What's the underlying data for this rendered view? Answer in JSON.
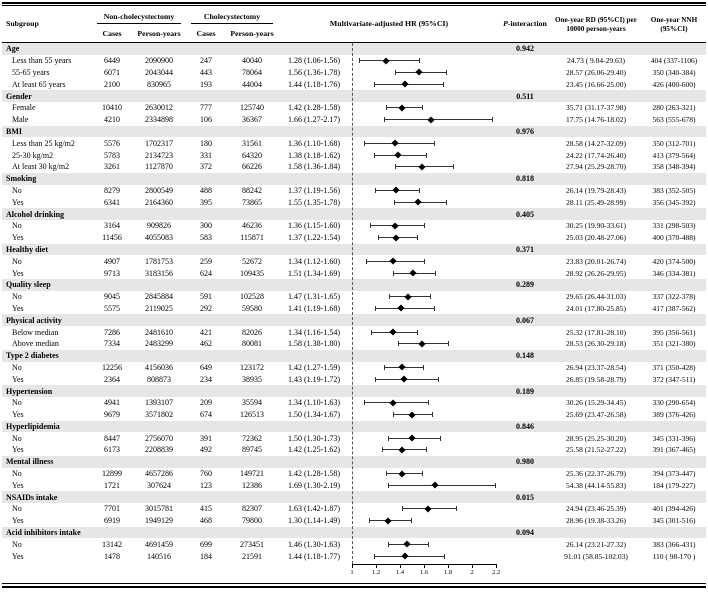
{
  "header": {
    "subgroup": "Subgroup",
    "group1": "Non-cholecystectomy",
    "group2": "Cholecystectomy",
    "cases": "Cases",
    "person_years": "Person-years",
    "hr": "Multivariate-adjusted HR (95%CI)",
    "p_head_italic": "P",
    "p_head_rest": "-interaction",
    "rd": "One-year RD (95%CI) per 10000 person-years",
    "nnh": "One-year NNH (95%CI)"
  },
  "style": {
    "section_band": "#e6e6e6",
    "marker_color": "#000000",
    "ci_color": "#333333"
  },
  "table": {
    "sections": [
      {
        "label": "Age",
        "p": "0.942",
        "rows": [
          {
            "label": "Less than 55 years",
            "cases1": "6449",
            "py1": "2090900",
            "cases2": "247",
            "py2": "40040",
            "hr_text": "1.28 (1.06-1.56)",
            "rd": "24.73 ( 9.04-29.63)",
            "nnh": "404 (337-1106)"
          },
          {
            "label": "55-65 years",
            "cases1": "6071",
            "py1": "2043044",
            "cases2": "443",
            "py2": "78064",
            "hr_text": "1.56 (1.36-1.78)",
            "rd": "28.57 (26.06-29.40)",
            "nnh": "350 (340-384)"
          },
          {
            "label": "At least 65 years",
            "cases1": "2100",
            "py1": "830965",
            "cases2": "193",
            "py2": "44004",
            "hr_text": "1.44 (1.18-1.76)",
            "rd": "23.45 (16.66-25.00)",
            "nnh": "426 (400-600)"
          }
        ]
      },
      {
        "label": "Gender",
        "p": "0.511",
        "rows": [
          {
            "label": "Female",
            "cases1": "10410",
            "py1": "2630012",
            "cases2": "777",
            "py2": "125740",
            "hr_text": "1.42 (1.28-1.58)",
            "rd": "35.71 (31.17-37.98)",
            "nnh": "280 (263-321)"
          },
          {
            "label": "Male",
            "cases1": "4210",
            "py1": "2334898",
            "cases2": "106",
            "py2": "36367",
            "hr_text": "1.66 (1.27-2.17)",
            "rd": "17.75 (14.76-18.02)",
            "nnh": "563 (555-678)"
          }
        ]
      },
      {
        "label": "BMI",
        "p": "0.976",
        "rows": [
          {
            "label": "Less than 25 kg/m2",
            "cases1": "5576",
            "py1": "1702317",
            "cases2": "180",
            "py2": "31561",
            "hr_text": "1.36 (1.10-1.68)",
            "rd": "28.58 (14.27-32.09)",
            "nnh": "350 (312-701)"
          },
          {
            "label": "25-30 kg/m2",
            "cases1": "5783",
            "py1": "2134723",
            "cases2": "331",
            "py2": "64320",
            "hr_text": "1.38 (1.18-1.62)",
            "rd": "24.22 (17.74-26.40)",
            "nnh": "413 (379-564)"
          },
          {
            "label": "At least 30 kg/m2",
            "cases1": "3261",
            "py1": "1127870",
            "cases2": "372",
            "py2": "66226",
            "hr_text": "1.58 (1.36-1.84)",
            "rd": "27.94 (25.29-28.70)",
            "nnh": "358 (348-394)"
          }
        ]
      },
      {
        "label": "Smoking",
        "p": "0.818",
        "rows": [
          {
            "label": "No",
            "cases1": "8279",
            "py1": "2800549",
            "cases2": "488",
            "py2": "88242",
            "hr_text": "1.37 (1.19-1.56)",
            "rd": "26.14 (19.79-28.43)",
            "nnh": "383 (352-505)"
          },
          {
            "label": "Yes",
            "cases1": "6341",
            "py1": "2164360",
            "cases2": "395",
            "py2": "73865",
            "hr_text": "1.55 (1.35-1.78)",
            "rd": "28.11 (25.49-28.99)",
            "nnh": "356 (345-392)"
          }
        ]
      },
      {
        "label": "Alcohol drinking",
        "p": "0.405",
        "rows": [
          {
            "label": "No",
            "cases1": "3164",
            "py1": "909826",
            "cases2": "300",
            "py2": "46236",
            "hr_text": "1.36 (1.15-1.60)",
            "rd": "30.25 (19.90-33.61)",
            "nnh": "331 (298-503)"
          },
          {
            "label": "Yes",
            "cases1": "11456",
            "py1": "4055083",
            "cases2": "583",
            "py2": "115871",
            "hr_text": "1.37 (1.22-1.54)",
            "rd": "25.03 (20.48-27.06)",
            "nnh": "400 (370-488)"
          }
        ]
      },
      {
        "label": "Healthy diet",
        "p": "0.371",
        "rows": [
          {
            "label": "No",
            "cases1": "4907",
            "py1": "1781753",
            "cases2": "259",
            "py2": "52672",
            "hr_text": "1.34 (1.12-1.60)",
            "rd": "23.83 (20.01-26.74)",
            "nnh": "420 (374-500)"
          },
          {
            "label": "Yes",
            "cases1": "9713",
            "py1": "3183156",
            "cases2": "624",
            "py2": "109435",
            "hr_text": "1.51 (1.34-1.69)",
            "rd": "28.92 (26.26-29.95)",
            "nnh": "346 (334-381)"
          }
        ]
      },
      {
        "label": "Quality sleep",
        "p": "0.289",
        "rows": [
          {
            "label": "No",
            "cases1": "9045",
            "py1": "2845884",
            "cases2": "591",
            "py2": "102528",
            "hr_text": "1.47 (1.31-1.65)",
            "rd": "29.65 (26.44-31.03)",
            "nnh": "337 (322-378)"
          },
          {
            "label": "Yes",
            "cases1": "5575",
            "py1": "2119025",
            "cases2": "292",
            "py2": "59580",
            "hr_text": "1.41 (1.19-1.68)",
            "rd": "24.01 (17.80-25.85)",
            "nnh": "417 (387-562)"
          }
        ]
      },
      {
        "label": "Physical activity",
        "p": "0.067",
        "rows": [
          {
            "label": "Below median",
            "cases1": "7286",
            "py1": "2481610",
            "cases2": "421",
            "py2": "82026",
            "hr_text": "1.34 (1.16-1.54)",
            "rd": "25.32 (17.81-28.10)",
            "nnh": "395 (356-561)"
          },
          {
            "label": "Above median",
            "cases1": "7334",
            "py1": "2483299",
            "cases2": "462",
            "py2": "80081",
            "hr_text": "1.58 (1.38-1.80)",
            "rd": "28.53 (26.30-29.18)",
            "nnh": "351 (321-380)"
          }
        ]
      },
      {
        "label": "Type 2 diabetes",
        "p": "0.148",
        "rows": [
          {
            "label": "No",
            "cases1": "12256",
            "py1": "4156036",
            "cases2": "649",
            "py2": "123172",
            "hr_text": "1.42 (1.27-1.59)",
            "rd": "26.94 (23.37-28.54)",
            "nnh": "371 (350-428)"
          },
          {
            "label": "Yes",
            "cases1": "2364",
            "py1": "808873",
            "cases2": "234",
            "py2": "38935",
            "hr_text": "1.43 (1.19-1.72)",
            "rd": "26.85 (19.58-28.79)",
            "nnh": "372 (347-511)"
          }
        ]
      },
      {
        "label": "Hypertension",
        "p": "0.189",
        "rows": [
          {
            "label": "No",
            "cases1": "4941",
            "py1": "1393107",
            "cases2": "209",
            "py2": "35594",
            "hr_text": "1.34 (1.10-1.63)",
            "rd": "30.26 (15.29-34.45)",
            "nnh": "330 (290-654)"
          },
          {
            "label": "Yes",
            "cases1": "9679",
            "py1": "3571802",
            "cases2": "674",
            "py2": "126513",
            "hr_text": "1.50 (1.34-1.67)",
            "rd": "25.69 (23.47-26.58)",
            "nnh": "389 (376-426)"
          }
        ]
      },
      {
        "label": "Hyperlipidemia",
        "p": "0.846",
        "rows": [
          {
            "label": "No",
            "cases1": "8447",
            "py1": "2756070",
            "cases2": "391",
            "py2": "72362",
            "hr_text": "1.50 (1.30-1.73)",
            "rd": "28.95 (25.25-30.20)",
            "nnh": "345 (331-396)"
          },
          {
            "label": "Yes",
            "cases1": "6173",
            "py1": "2208839",
            "cases2": "492",
            "py2": "89745",
            "hr_text": "1.42 (1.25-1.62)",
            "rd": "25.58 (21.52-27.22)",
            "nnh": "391 (367-465)"
          }
        ]
      },
      {
        "label": "Mental illness",
        "p": "0.980",
        "rows": [
          {
            "label": "No",
            "cases1": "12899",
            "py1": "4657286",
            "cases2": "760",
            "py2": "149721",
            "hr_text": "1.42 (1.28-1.58)",
            "rd": "25.36 (22.37-26.79)",
            "nnh": "394 (373-447)"
          },
          {
            "label": "Yes",
            "cases1": "1721",
            "py1": "307624",
            "cases2": "123",
            "py2": "12386",
            "hr_text": "1.69 (1.30-2.19)",
            "rd": "54.38 (44.14-55.83)",
            "nnh": "184 (179-227)"
          }
        ]
      },
      {
        "label": "NSAIDs intake",
        "p": "0.015",
        "rows": [
          {
            "label": "No",
            "cases1": "7701",
            "py1": "3015781",
            "cases2": "415",
            "py2": "82307",
            "hr_text": "1.63 (1.42-1.87)",
            "rd": "24.94 (23.46-25.39)",
            "nnh": "401 (394-426)"
          },
          {
            "label": "Yes",
            "cases1": "6919",
            "py1": "1949129",
            "cases2": "468",
            "py2": "79800",
            "hr_text": "1.30 (1.14-1.49)",
            "rd": "28.96 (19.38-33.26)",
            "nnh": "345 (301-516)"
          }
        ]
      },
      {
        "label": "Acid inhibitors intake",
        "p": "0.094",
        "rows": [
          {
            "label": "No",
            "cases1": "13142",
            "py1": "4691459",
            "cases2": "699",
            "py2": "273451",
            "hr_text": "1.46 (1.30-1.63)",
            "rd": "26.14 (23.21-27.32)",
            "nnh": "383 (366-431)"
          },
          {
            "label": "Yes",
            "cases1": "1478",
            "py1": "140516",
            "cases2": "184",
            "py2": "21591",
            "hr_text": "1.44 (1.18-1.77)",
            "rd": "91.01 (58.85-102.03)",
            "nnh": "110 ( 98-170 )"
          }
        ]
      }
    ]
  },
  "chart_data": {
    "type": "scatter",
    "subtype": "forest-plot",
    "xlabel": "Multivariate-adjusted HR (95%CI)",
    "xlim": [
      1,
      2.2
    ],
    "xticks": [
      1,
      1.2,
      1.4,
      1.6,
      1.8,
      2,
      2.2
    ],
    "ref_line": 1,
    "points": [
      {
        "section": "Age",
        "label": "Less than 55 years",
        "hr": 1.28,
        "lo": 1.06,
        "hi": 1.56
      },
      {
        "section": "Age",
        "label": "55-65 years",
        "hr": 1.56,
        "lo": 1.36,
        "hi": 1.78
      },
      {
        "section": "Age",
        "label": "At least 65 years",
        "hr": 1.44,
        "lo": 1.18,
        "hi": 1.76
      },
      {
        "section": "Gender",
        "label": "Female",
        "hr": 1.42,
        "lo": 1.28,
        "hi": 1.58
      },
      {
        "section": "Gender",
        "label": "Male",
        "hr": 1.66,
        "lo": 1.27,
        "hi": 2.17
      },
      {
        "section": "BMI",
        "label": "Less than 25 kg/m2",
        "hr": 1.36,
        "lo": 1.1,
        "hi": 1.68
      },
      {
        "section": "BMI",
        "label": "25-30 kg/m2",
        "hr": 1.38,
        "lo": 1.18,
        "hi": 1.62
      },
      {
        "section": "BMI",
        "label": "At least 30 kg/m2",
        "hr": 1.58,
        "lo": 1.36,
        "hi": 1.84
      },
      {
        "section": "Smoking",
        "label": "No",
        "hr": 1.37,
        "lo": 1.19,
        "hi": 1.56
      },
      {
        "section": "Smoking",
        "label": "Yes",
        "hr": 1.55,
        "lo": 1.35,
        "hi": 1.78
      },
      {
        "section": "Alcohol drinking",
        "label": "No",
        "hr": 1.36,
        "lo": 1.15,
        "hi": 1.6
      },
      {
        "section": "Alcohol drinking",
        "label": "Yes",
        "hr": 1.37,
        "lo": 1.22,
        "hi": 1.54
      },
      {
        "section": "Healthy diet",
        "label": "No",
        "hr": 1.34,
        "lo": 1.12,
        "hi": 1.6
      },
      {
        "section": "Healthy diet",
        "label": "Yes",
        "hr": 1.51,
        "lo": 1.34,
        "hi": 1.69
      },
      {
        "section": "Quality sleep",
        "label": "No",
        "hr": 1.47,
        "lo": 1.31,
        "hi": 1.65
      },
      {
        "section": "Quality sleep",
        "label": "Yes",
        "hr": 1.41,
        "lo": 1.19,
        "hi": 1.68
      },
      {
        "section": "Physical activity",
        "label": "Below median",
        "hr": 1.34,
        "lo": 1.16,
        "hi": 1.54
      },
      {
        "section": "Physical activity",
        "label": "Above median",
        "hr": 1.58,
        "lo": 1.38,
        "hi": 1.8
      },
      {
        "section": "Type 2 diabetes",
        "label": "No",
        "hr": 1.42,
        "lo": 1.27,
        "hi": 1.59
      },
      {
        "section": "Type 2 diabetes",
        "label": "Yes",
        "hr": 1.43,
        "lo": 1.19,
        "hi": 1.72
      },
      {
        "section": "Hypertension",
        "label": "No",
        "hr": 1.34,
        "lo": 1.1,
        "hi": 1.63
      },
      {
        "section": "Hypertension",
        "label": "Yes",
        "hr": 1.5,
        "lo": 1.34,
        "hi": 1.67
      },
      {
        "section": "Hyperlipidemia",
        "label": "No",
        "hr": 1.5,
        "lo": 1.3,
        "hi": 1.73
      },
      {
        "section": "Hyperlipidemia",
        "label": "Yes",
        "hr": 1.42,
        "lo": 1.25,
        "hi": 1.62
      },
      {
        "section": "Mental illness",
        "label": "No",
        "hr": 1.42,
        "lo": 1.28,
        "hi": 1.58
      },
      {
        "section": "Mental illness",
        "label": "Yes",
        "hr": 1.69,
        "lo": 1.3,
        "hi": 2.19
      },
      {
        "section": "NSAIDs intake",
        "label": "No",
        "hr": 1.63,
        "lo": 1.42,
        "hi": 1.87
      },
      {
        "section": "NSAIDs intake",
        "label": "Yes",
        "hr": 1.3,
        "lo": 1.14,
        "hi": 1.49
      },
      {
        "section": "Acid inhibitors intake",
        "label": "No",
        "hr": 1.46,
        "lo": 1.3,
        "hi": 1.63
      },
      {
        "section": "Acid inhibitors intake",
        "label": "Yes",
        "hr": 1.44,
        "lo": 1.18,
        "hi": 1.77
      }
    ]
  }
}
